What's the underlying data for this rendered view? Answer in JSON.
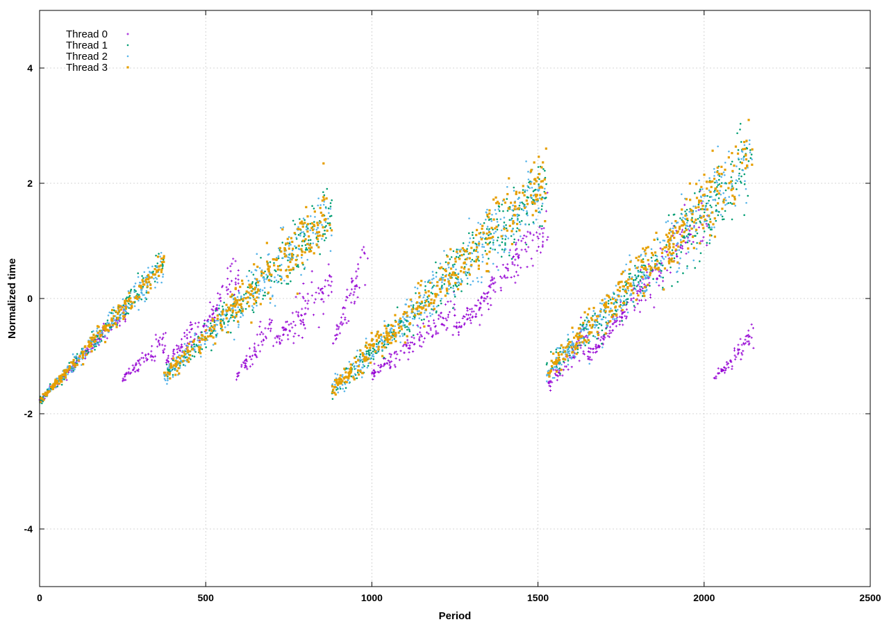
{
  "chart_data": {
    "type": "scatter",
    "title": "",
    "xlabel": "Period",
    "ylabel": "Normalized time",
    "xlim": [
      0,
      2500
    ],
    "ylim": [
      -5,
      5
    ],
    "xticks": [
      0,
      500,
      1000,
      1500,
      2000,
      2500
    ],
    "yticks": [
      -4,
      -2,
      0,
      2,
      4
    ],
    "grid": true,
    "legend_position": "top-left",
    "series": [
      {
        "name": "Thread 0",
        "color": "#9400d3",
        "marker": "plus",
        "segments": [
          {
            "x": [
              0,
              260
            ],
            "y": [
              -1.78,
              -0.2
            ],
            "spread": 0.15
          },
          {
            "x": [
              250,
              380
            ],
            "y": [
              -1.4,
              -0.7
            ],
            "spread": 0.25
          },
          {
            "x": [
              380,
              480
            ],
            "y": [
              -1.1,
              -0.5
            ],
            "spread": 0.3
          },
          {
            "x": [
              480,
              600
            ],
            "y": [
              -0.7,
              0.5
            ],
            "spread": 0.45
          },
          {
            "x": [
              590,
              700
            ],
            "y": [
              -1.4,
              -0.4
            ],
            "spread": 0.3
          },
          {
            "x": [
              700,
              880
            ],
            "y": [
              -0.8,
              0.3
            ],
            "spread": 0.5
          },
          {
            "x": [
              880,
              990
            ],
            "y": [
              -0.8,
              0.8
            ],
            "spread": 0.5
          },
          {
            "x": [
              1000,
              1250
            ],
            "y": [
              -1.3,
              -0.2
            ],
            "spread": 0.35
          },
          {
            "x": [
              1250,
              1530
            ],
            "y": [
              -0.6,
              1.3
            ],
            "spread": 0.45
          },
          {
            "x": [
              1530,
              1650
            ],
            "y": [
              -1.5,
              -0.6
            ],
            "spread": 0.35
          },
          {
            "x": [
              1650,
              2010
            ],
            "y": [
              -1.0,
              1.5
            ],
            "spread": 0.45
          },
          {
            "x": [
              2030,
              2150
            ],
            "y": [
              -1.4,
              -0.6
            ],
            "spread": 0.2
          }
        ]
      },
      {
        "name": "Thread 1",
        "color": "#009e73",
        "marker": "dot",
        "segments": [
          {
            "x": [
              0,
              375
            ],
            "y": [
              -1.78,
              0.6
            ],
            "spread": 0.25
          },
          {
            "x": [
              375,
              880
            ],
            "y": [
              -1.35,
              1.5
            ],
            "spread": 0.5
          },
          {
            "x": [
              880,
              1525
            ],
            "y": [
              -1.6,
              2.0
            ],
            "spread": 0.55
          },
          {
            "x": [
              1525,
              2145
            ],
            "y": [
              -1.3,
              2.3
            ],
            "spread": 0.65
          }
        ]
      },
      {
        "name": "Thread 2",
        "color": "#56b4e9",
        "marker": "dot",
        "segments": [
          {
            "x": [
              0,
              375
            ],
            "y": [
              -1.78,
              0.6
            ],
            "spread": 0.27
          },
          {
            "x": [
              375,
              880
            ],
            "y": [
              -1.35,
              1.5
            ],
            "spread": 0.55
          },
          {
            "x": [
              880,
              1525
            ],
            "y": [
              -1.6,
              2.0
            ],
            "spread": 0.6
          },
          {
            "x": [
              1525,
              2145
            ],
            "y": [
              -1.3,
              2.4
            ],
            "spread": 0.7
          }
        ]
      },
      {
        "name": "Thread 3",
        "color": "#e69f00",
        "marker": "square",
        "segments": [
          {
            "x": [
              0,
              375
            ],
            "y": [
              -1.78,
              0.6
            ],
            "spread": 0.22
          },
          {
            "x": [
              375,
              880
            ],
            "y": [
              -1.35,
              1.5
            ],
            "spread": 0.5
          },
          {
            "x": [
              880,
              1525
            ],
            "y": [
              -1.6,
              2.1
            ],
            "spread": 0.55
          },
          {
            "x": [
              1525,
              2145
            ],
            "y": [
              -1.3,
              2.5
            ],
            "spread": 0.65
          }
        ]
      }
    ]
  }
}
